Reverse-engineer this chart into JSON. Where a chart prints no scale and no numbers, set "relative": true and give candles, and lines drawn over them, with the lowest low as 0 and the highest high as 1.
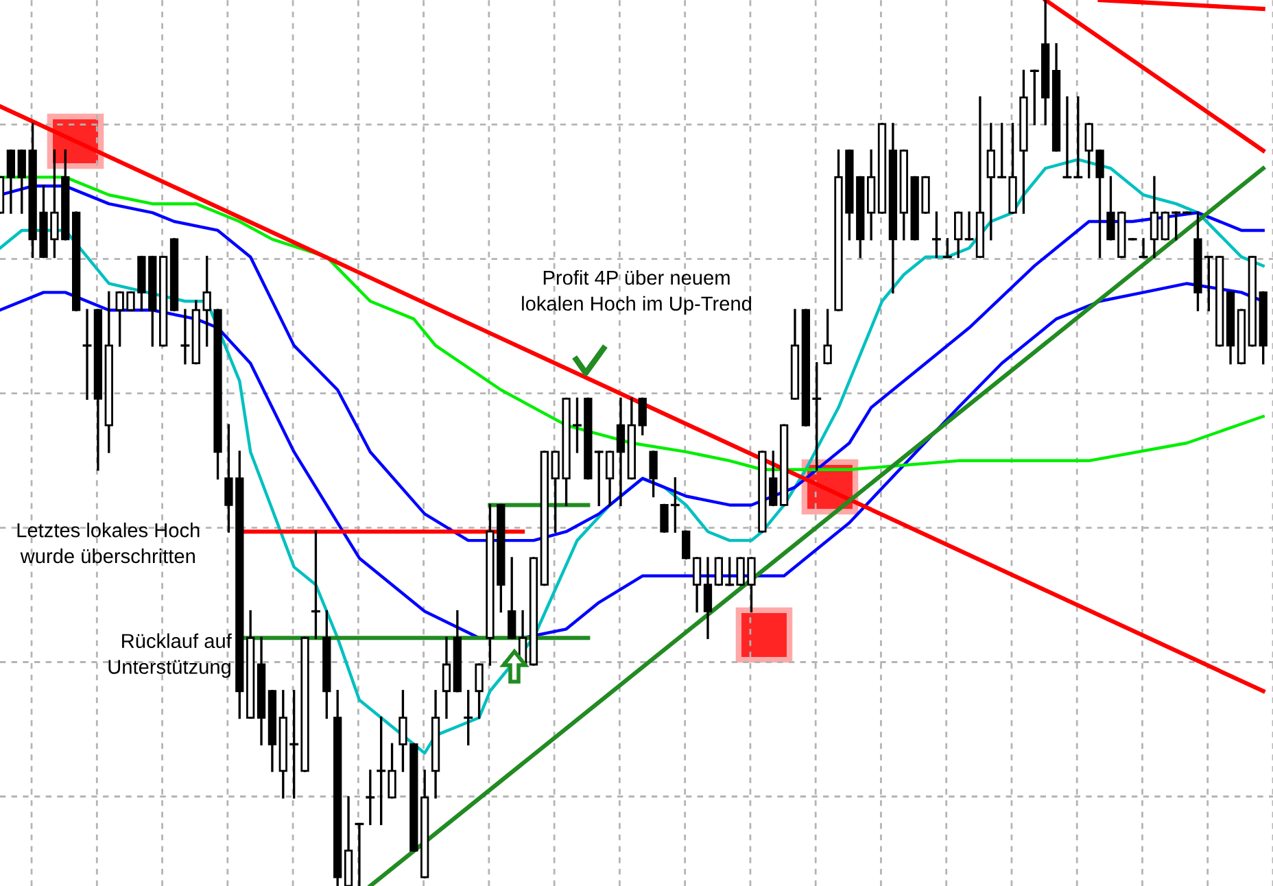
{
  "chart_data": {
    "type": "candlestick",
    "relative": true,
    "grid": true,
    "categories": [
      null,
      null,
      null,
      null,
      null,
      null,
      null,
      null,
      null,
      null,
      null,
      null,
      null,
      null,
      null,
      null,
      null,
      null,
      null,
      null,
      null,
      null,
      null,
      null,
      null,
      null,
      null,
      null,
      null,
      null,
      null,
      null,
      null,
      null,
      null,
      null,
      null,
      null,
      null,
      null,
      null,
      null,
      null,
      null,
      null,
      null,
      null,
      null,
      null,
      null,
      null,
      null,
      null,
      null,
      null,
      null,
      null,
      null,
      null,
      null,
      null,
      null,
      null,
      null,
      null,
      null,
      null,
      null,
      null,
      null,
      null,
      null,
      null,
      null,
      null,
      null,
      null,
      null,
      null,
      null,
      null,
      null,
      null,
      null,
      null,
      null,
      null,
      null,
      null,
      null,
      null,
      null,
      null,
      null,
      null,
      null,
      null,
      null,
      null,
      null,
      null,
      null,
      null,
      null,
      null,
      null,
      null,
      null,
      null,
      null,
      null,
      null,
      null,
      null,
      null,
      null,
      null
    ],
    "ohlc": [
      [
        0.76,
        0.8,
        0.76,
        0.8
      ],
      [
        0.83,
        0.83,
        0.76,
        0.8
      ],
      [
        0.83,
        0.83,
        0.76,
        0.8
      ],
      [
        0.83,
        0.86,
        0.71,
        0.73
      ],
      [
        0.76,
        0.79,
        0.71,
        0.71
      ],
      [
        0.73,
        0.83,
        0.71,
        0.76
      ],
      [
        0.8,
        0.83,
        0.73,
        0.73
      ],
      [
        0.76,
        0.76,
        0.65,
        0.65
      ],
      [
        0.61,
        0.65,
        0.55,
        0.61
      ],
      [
        0.65,
        0.65,
        0.47,
        0.55
      ],
      [
        0.52,
        0.67,
        0.49,
        0.61
      ],
      [
        0.65,
        0.67,
        0.61,
        0.67
      ],
      [
        0.65,
        0.67,
        0.65,
        0.67
      ],
      [
        0.71,
        0.71,
        0.65,
        0.67
      ],
      [
        0.71,
        0.71,
        0.61,
        0.65
      ],
      [
        0.61,
        0.71,
        0.61,
        0.71
      ],
      [
        0.73,
        0.73,
        0.65,
        0.65
      ],
      [
        0.61,
        0.65,
        0.59,
        0.61
      ],
      [
        0.59,
        0.66,
        0.59,
        0.65
      ],
      [
        0.65,
        0.71,
        0.61,
        0.67
      ],
      [
        0.65,
        0.65,
        0.46,
        0.49
      ],
      [
        0.46,
        0.52,
        0.4,
        0.43
      ],
      [
        0.46,
        0.49,
        0.19,
        0.22
      ],
      [
        0.19,
        0.31,
        0.19,
        0.28
      ],
      [
        0.25,
        0.28,
        0.16,
        0.19
      ],
      [
        0.22,
        0.22,
        0.13,
        0.16
      ],
      [
        0.13,
        0.22,
        0.1,
        0.19
      ],
      [
        0.16,
        0.22,
        0.1,
        0.16
      ],
      [
        0.13,
        0.28,
        0.13,
        0.28
      ],
      [
        0.31,
        0.4,
        0.28,
        0.31
      ],
      [
        0.28,
        0.31,
        0.19,
        0.22
      ],
      [
        0.19,
        0.22,
        0.0,
        0.01
      ],
      [
        0.0,
        0.1,
        0.0,
        0.04
      ],
      [
        0.07,
        0.07,
        0.0,
        0.07
      ],
      [
        0.1,
        0.13,
        0.07,
        0.1
      ],
      [
        0.13,
        0.19,
        0.07,
        0.13
      ],
      [
        0.1,
        0.16,
        0.1,
        0.13
      ],
      [
        0.16,
        0.22,
        0.13,
        0.19
      ],
      [
        0.16,
        0.16,
        0.04,
        0.04
      ],
      [
        0.01,
        0.13,
        0.01,
        0.1
      ],
      [
        0.13,
        0.22,
        0.1,
        0.19
      ],
      [
        0.22,
        0.28,
        0.19,
        0.25
      ],
      [
        0.28,
        0.31,
        0.22,
        0.22
      ],
      [
        0.19,
        0.22,
        0.16,
        0.19
      ],
      [
        0.22,
        0.25,
        0.19,
        0.25
      ],
      [
        0.28,
        0.43,
        0.25,
        0.4
      ],
      [
        0.43,
        0.43,
        0.31,
        0.34
      ],
      [
        0.31,
        0.37,
        0.28,
        0.28
      ],
      [
        0.25,
        0.31,
        0.25,
        0.28
      ],
      [
        0.25,
        0.37,
        0.25,
        0.37
      ],
      [
        0.34,
        0.49,
        0.34,
        0.49
      ],
      [
        0.46,
        0.49,
        0.4,
        0.49
      ],
      [
        0.46,
        0.55,
        0.43,
        0.55
      ],
      [
        0.52,
        0.55,
        0.49,
        0.52
      ],
      [
        0.55,
        0.55,
        0.46,
        0.46
      ],
      [
        0.49,
        0.49,
        0.43,
        0.49
      ],
      [
        0.46,
        0.49,
        0.43,
        0.49
      ],
      [
        0.52,
        0.55,
        0.43,
        0.49
      ],
      [
        0.46,
        0.55,
        0.46,
        0.52
      ],
      [
        0.55,
        0.55,
        0.51,
        0.52
      ],
      [
        0.49,
        0.49,
        0.44,
        0.46
      ],
      [
        0.43,
        0.43,
        0.4,
        0.4
      ],
      [
        0.43,
        0.46,
        0.4,
        0.43
      ],
      [
        0.4,
        0.4,
        0.37,
        0.37
      ],
      [
        0.34,
        0.37,
        0.31,
        0.37
      ],
      [
        0.34,
        0.37,
        0.28,
        0.31
      ],
      [
        0.34,
        0.37,
        0.34,
        0.37
      ],
      [
        0.34,
        0.37,
        0.34,
        0.34
      ],
      [
        0.34,
        0.37,
        0.34,
        0.37
      ],
      [
        0.34,
        0.37,
        0.31,
        0.37
      ],
      [
        0.4,
        0.49,
        0.4,
        0.49
      ],
      [
        0.46,
        0.49,
        0.43,
        0.43
      ],
      [
        0.43,
        0.52,
        0.43,
        0.52
      ],
      [
        0.55,
        0.65,
        0.55,
        0.61
      ],
      [
        0.65,
        0.65,
        0.52,
        0.52
      ],
      [
        0.55,
        0.59,
        0.47,
        0.55
      ],
      [
        0.59,
        0.65,
        0.59,
        0.61
      ],
      [
        0.65,
        0.83,
        0.65,
        0.8
      ],
      [
        0.83,
        0.83,
        0.73,
        0.76
      ],
      [
        0.8,
        0.8,
        0.71,
        0.73
      ],
      [
        0.76,
        0.83,
        0.73,
        0.8
      ],
      [
        0.76,
        0.86,
        0.76,
        0.86
      ],
      [
        0.83,
        0.86,
        0.67,
        0.73
      ],
      [
        0.76,
        0.83,
        0.73,
        0.83
      ],
      [
        0.8,
        0.8,
        0.73,
        0.73
      ],
      [
        0.76,
        0.8,
        0.76,
        0.8
      ],
      [
        0.73,
        0.76,
        0.71,
        0.73
      ],
      [
        0.71,
        0.73,
        0.71,
        0.71
      ],
      [
        0.73,
        0.76,
        0.71,
        0.76
      ],
      [
        0.73,
        0.76,
        0.73,
        0.73
      ],
      [
        0.71,
        0.89,
        0.71,
        0.76
      ],
      [
        0.8,
        0.86,
        0.73,
        0.83
      ],
      [
        0.8,
        0.86,
        0.8,
        0.8
      ],
      [
        0.76,
        0.86,
        0.76,
        0.8
      ],
      [
        0.83,
        0.92,
        0.76,
        0.89
      ],
      [
        0.92,
        0.92,
        0.86,
        0.92
      ],
      [
        0.95,
        1.0,
        0.86,
        0.89
      ],
      [
        0.92,
        0.95,
        0.83,
        0.83
      ],
      [
        0.8,
        0.89,
        0.8,
        0.8
      ],
      [
        0.8,
        0.89,
        0.8,
        0.8
      ],
      [
        0.83,
        0.86,
        0.8,
        0.86
      ],
      [
        0.83,
        0.83,
        0.71,
        0.8
      ],
      [
        0.76,
        0.8,
        0.73,
        0.73
      ],
      [
        0.71,
        0.76,
        0.71,
        0.76
      ],
      [
        0.73,
        0.73,
        0.73,
        0.73
      ],
      [
        0.71,
        0.73,
        0.71,
        0.71
      ],
      [
        0.73,
        0.8,
        0.71,
        0.76
      ],
      [
        0.73,
        0.76,
        0.73,
        0.76
      ],
      [
        0.76,
        0.76,
        0.73,
        0.76
      ],
      [
        0.76,
        0.76,
        0.76,
        0.76
      ],
      [
        0.73,
        0.76,
        0.65,
        0.67
      ],
      [
        0.71,
        0.71,
        0.65,
        0.71
      ],
      [
        0.61,
        0.71,
        0.61,
        0.71
      ],
      [
        0.67,
        0.67,
        0.59,
        0.61
      ],
      [
        0.59,
        0.65,
        0.59,
        0.65
      ],
      [
        0.61,
        0.71,
        0.61,
        0.71
      ],
      [
        0.67,
        0.67,
        0.59,
        0.61
      ]
    ],
    "series": [
      {
        "type": "line",
        "color": "#00c0c0",
        "values": [
          0.72,
          null,
          0.74,
          null,
          null,
          null,
          0.74,
          null,
          null,
          null,
          0.68,
          null,
          null,
          null,
          null,
          null,
          null,
          0.66,
          null,
          0.66,
          null,
          null,
          0.57,
          0.49,
          null,
          null,
          null,
          0.36,
          null,
          0.34,
          null,
          0.28,
          null,
          0.21,
          null,
          null,
          0.18,
          null,
          null,
          0.15,
          0.17,
          null,
          0.18,
          null,
          0.19,
          0.22,
          null,
          0.25,
          null,
          0.28,
          null,
          null,
          null,
          0.39,
          null,
          null,
          0.43,
          null,
          null,
          0.46,
          null,
          0.45,
          null,
          0.43,
          null,
          0.4,
          null,
          0.39,
          null,
          0.39,
          0.4,
          null,
          0.43,
          null,
          0.47,
          null,
          null,
          0.54,
          null,
          null,
          null,
          0.66,
          null,
          0.69,
          null,
          0.71,
          null,
          0.71,
          null,
          0.72,
          null,
          0.75,
          null,
          0.76,
          0.78,
          null,
          0.81,
          null,
          null,
          0.82,
          null,
          null,
          0.81,
          null,
          null,
          0.78,
          null,
          null,
          0.77,
          null,
          0.76,
          null,
          null,
          null,
          0.71,
          null,
          0.7
        ]
      },
      {
        "type": "line",
        "color": "#0000ff",
        "values": [
          0.78,
          null,
          null,
          0.79,
          null,
          null,
          0.79,
          null,
          null,
          null,
          0.77,
          null,
          null,
          null,
          0.76,
          null,
          0.75,
          null,
          null,
          null,
          0.74,
          null,
          null,
          0.71,
          null,
          null,
          null,
          0.61,
          null,
          null,
          null,
          0.56,
          null,
          null,
          0.49,
          null,
          null,
          null,
          null,
          0.42,
          null,
          null,
          null,
          0.39,
          null,
          null,
          null,
          null,
          null,
          0.39,
          null,
          null,
          0.4,
          null,
          null,
          0.42,
          null,
          null,
          null,
          0.46,
          null,
          null,
          null,
          0.44,
          null,
          null,
          null,
          0.43,
          null,
          0.43,
          null,
          null,
          null,
          0.45,
          null,
          null,
          null,
          null,
          0.5,
          null,
          0.54,
          null,
          null,
          null,
          null,
          0.59,
          null,
          null,
          null,
          0.63,
          null,
          null,
          null,
          null,
          null,
          0.7,
          null,
          0.72,
          null,
          null,
          0.75,
          null,
          null,
          null,
          0.75,
          null,
          null,
          null,
          null,
          null,
          0.76,
          null,
          null,
          null,
          0.74,
          null,
          0.74
        ]
      },
      {
        "type": "line",
        "color": "#0000ff",
        "values": [
          0.65,
          null,
          null,
          null,
          0.67,
          null,
          0.67,
          null,
          null,
          null,
          0.65,
          null,
          null,
          null,
          0.65,
          null,
          null,
          null,
          0.64,
          null,
          0.63,
          null,
          null,
          0.59,
          null,
          null,
          null,
          0.49,
          null,
          null,
          null,
          null,
          null,
          0.37,
          null,
          null,
          null,
          null,
          null,
          0.31,
          null,
          null,
          null,
          null,
          0.28,
          null,
          null,
          null,
          0.28,
          null,
          null,
          null,
          0.29,
          null,
          null,
          0.32,
          null,
          null,
          null,
          0.35,
          null,
          null,
          null,
          0.35,
          null,
          null,
          null,
          0.35,
          null,
          0.35,
          null,
          null,
          0.35,
          null,
          null,
          0.38,
          null,
          null,
          0.41,
          null,
          null,
          null,
          null,
          null,
          null,
          null,
          null,
          null,
          0.54,
          null,
          null,
          null,
          0.59,
          null,
          null,
          null,
          null,
          0.64,
          null,
          null,
          null,
          0.66,
          null,
          null,
          null,
          0.67,
          null,
          null,
          null,
          0.68,
          null,
          null,
          null,
          null,
          0.67,
          null,
          0.66
        ]
      },
      {
        "type": "line",
        "color": "#00ee00",
        "values": [
          0.8,
          null,
          null,
          null,
          null,
          null,
          0.8,
          null,
          null,
          null,
          0.78,
          null,
          null,
          null,
          0.77,
          null,
          null,
          null,
          0.77,
          null,
          null,
          null,
          0.75,
          null,
          null,
          0.73,
          null,
          null,
          null,
          null,
          0.71,
          null,
          null,
          null,
          0.66,
          null,
          null,
          null,
          0.64,
          null,
          0.61,
          null,
          null,
          null,
          null,
          null,
          0.56,
          null,
          null,
          null,
          null,
          null,
          0.52,
          null,
          null,
          0.51,
          null,
          null,
          0.5,
          null,
          null,
          null,
          null,
          0.49,
          null,
          null,
          null,
          0.48,
          null,
          null,
          0.47,
          null,
          null,
          0.47,
          null,
          null,
          null,
          null,
          0.47,
          null,
          null,
          null,
          null,
          null,
          null,
          null,
          null,
          null,
          0.48,
          null,
          null,
          null,
          null,
          null,
          null,
          null,
          null,
          null,
          null,
          null,
          0.48,
          null,
          null,
          null,
          null,
          null,
          null,
          null,
          null,
          0.5,
          null,
          null,
          null,
          null,
          null,
          null,
          0.53
        ]
      },
      {
        "type": "line",
        "color": "#ff0000",
        "values": [
          0.88,
          null,
          null,
          null,
          null,
          null,
          null,
          null,
          null,
          null,
          null,
          null,
          null,
          null,
          null,
          null,
          null,
          null,
          null,
          null,
          null,
          null,
          null,
          null,
          null,
          null,
          null,
          null,
          null,
          null,
          null,
          null,
          null,
          null,
          null,
          null,
          null,
          null,
          null,
          null,
          null,
          null,
          null,
          null,
          null,
          null,
          null,
          null,
          null,
          null,
          null,
          null,
          null,
          null,
          null,
          null,
          null,
          null,
          null,
          null,
          null,
          null,
          null,
          null,
          null,
          null,
          null,
          null,
          null,
          null,
          null,
          null,
          null,
          null,
          null,
          null,
          null,
          null,
          null,
          null,
          null,
          null,
          null,
          null,
          null,
          null,
          null,
          null,
          null,
          null,
          null,
          null,
          null,
          null,
          null,
          null,
          null,
          null,
          null,
          null,
          null,
          null,
          null,
          null,
          null,
          null,
          null,
          null,
          null,
          null,
          null,
          null,
          null,
          null,
          null,
          null,
          0.22
        ]
      },
      {
        "type": "line",
        "color": "#ff0000",
        "values": [
          null,
          null,
          null,
          null,
          null,
          null,
          null,
          null,
          null,
          null,
          null,
          null,
          null,
          null,
          null,
          null,
          null,
          null,
          null,
          null,
          null,
          null,
          null,
          null,
          null,
          null,
          null,
          null,
          null,
          null,
          null,
          null,
          null,
          null,
          null,
          null,
          null,
          null,
          null,
          null,
          null,
          null,
          null,
          null,
          null,
          null,
          null,
          null,
          null,
          null,
          null,
          null,
          null,
          null,
          null,
          null,
          null,
          null,
          null,
          null,
          null,
          null,
          null,
          null,
          null,
          null,
          null,
          null,
          null,
          null,
          null,
          null,
          null,
          null,
          null,
          null,
          null,
          null,
          null,
          null,
          null,
          null,
          null,
          null,
          null,
          null,
          null,
          null,
          null,
          null,
          null,
          null,
          null,
          null,
          null,
          null,
          1.0,
          null,
          null,
          null,
          null,
          null,
          null,
          null,
          null,
          null,
          null,
          null,
          null,
          null,
          null,
          null,
          null,
          null,
          null,
          null,
          0.83
        ]
      },
      {
        "type": "line",
        "color": "#ff0000",
        "values": [
          null,
          null,
          null,
          null,
          null,
          null,
          null,
          null,
          null,
          null,
          null,
          null,
          null,
          null,
          null,
          null,
          null,
          null,
          null,
          null,
          null,
          null,
          null,
          null,
          null,
          null,
          null,
          null,
          null,
          null,
          null,
          null,
          null,
          null,
          null,
          null,
          null,
          null,
          null,
          null,
          null,
          null,
          null,
          null,
          null,
          null,
          null,
          null,
          null,
          null,
          null,
          null,
          null,
          null,
          null,
          null,
          null,
          null,
          null,
          null,
          null,
          null,
          null,
          null,
          null,
          null,
          null,
          null,
          null,
          null,
          null,
          null,
          null,
          null,
          null,
          null,
          null,
          null,
          null,
          null,
          null,
          null,
          null,
          null,
          null,
          null,
          null,
          null,
          null,
          null,
          null,
          null,
          null,
          null,
          null,
          null,
          null,
          null,
          null,
          null,
          null,
          1.0,
          null,
          null,
          null,
          null,
          null,
          null,
          null,
          null,
          null,
          null,
          null,
          null,
          null,
          null,
          0.99
        ]
      },
      {
        "type": "line",
        "color": "#228b22",
        "values": [
          null,
          null,
          null,
          null,
          null,
          null,
          null,
          null,
          null,
          null,
          null,
          null,
          null,
          null,
          null,
          null,
          null,
          null,
          null,
          null,
          null,
          null,
          null,
          null,
          null,
          null,
          null,
          null,
          null,
          null,
          null,
          null,
          null,
          null,
          0.0,
          null,
          null,
          null,
          null,
          null,
          null,
          null,
          null,
          null,
          null,
          null,
          null,
          null,
          null,
          null,
          null,
          null,
          null,
          null,
          null,
          null,
          null,
          null,
          null,
          null,
          null,
          null,
          null,
          null,
          null,
          null,
          null,
          null,
          null,
          null,
          null,
          null,
          null,
          null,
          null,
          null,
          null,
          null,
          null,
          null,
          null,
          null,
          null,
          null,
          null,
          null,
          null,
          null,
          null,
          null,
          null,
          null,
          null,
          null,
          null,
          null,
          null,
          null,
          null,
          null,
          null,
          null,
          null,
          null,
          null,
          null,
          null,
          null,
          null,
          null,
          null,
          null,
          null,
          null,
          null,
          null,
          0.81
        ]
      },
      {
        "type": "line",
        "color": "#ff0000",
        "values": [
          null,
          null,
          null,
          null,
          null,
          null,
          null,
          null,
          null,
          null,
          null,
          null,
          null,
          null,
          null,
          null,
          null,
          null,
          null,
          null,
          null,
          null,
          0.4,
          null,
          null,
          null,
          null,
          null,
          null,
          null,
          null,
          null,
          null,
          null,
          null,
          null,
          null,
          null,
          null,
          null,
          null,
          null,
          null,
          null,
          null,
          null,
          null,
          null,
          0.4,
          null,
          null,
          null,
          null,
          null,
          null,
          null,
          null,
          null,
          null,
          null,
          null,
          null,
          null,
          null,
          null,
          null,
          null,
          null,
          null,
          null,
          null,
          null,
          null,
          null,
          null,
          null,
          null,
          null,
          null,
          null,
          null,
          null,
          null,
          null,
          null,
          null,
          null,
          null,
          null,
          null,
          null,
          null,
          null,
          null,
          null,
          null,
          null,
          null,
          null,
          null,
          null,
          null,
          null,
          null,
          null,
          null,
          null,
          null,
          null,
          null,
          null,
          null,
          null,
          null,
          null,
          null,
          null
        ]
      },
      {
        "type": "line",
        "color": "#228b22",
        "values": [
          null,
          null,
          null,
          null,
          null,
          null,
          null,
          null,
          null,
          null,
          null,
          null,
          null,
          null,
          null,
          null,
          null,
          null,
          null,
          null,
          null,
          null,
          0.28,
          null,
          null,
          null,
          null,
          null,
          null,
          null,
          null,
          null,
          null,
          null,
          null,
          null,
          null,
          null,
          null,
          null,
          null,
          null,
          null,
          null,
          null,
          null,
          null,
          null,
          null,
          null,
          null,
          null,
          null,
          null,
          0.28,
          null,
          null,
          null,
          null,
          null,
          null,
          null,
          null,
          null,
          null,
          null,
          null,
          null,
          null,
          null,
          null,
          null,
          null,
          null,
          null,
          null,
          null,
          null,
          null,
          null,
          null,
          null,
          null,
          null,
          null,
          null,
          null,
          null,
          null,
          null,
          null,
          null,
          null,
          null,
          null,
          null,
          null,
          null,
          null,
          null,
          null,
          null,
          null,
          null,
          null,
          null,
          null,
          null,
          null,
          null,
          null,
          null,
          null,
          null,
          null,
          null,
          null
        ]
      },
      {
        "type": "line",
        "color": "#228b22",
        "values": [
          null,
          null,
          null,
          null,
          null,
          null,
          null,
          null,
          null,
          null,
          null,
          null,
          null,
          null,
          null,
          null,
          null,
          null,
          null,
          null,
          null,
          null,
          null,
          null,
          null,
          null,
          null,
          null,
          null,
          null,
          null,
          null,
          null,
          null,
          null,
          null,
          null,
          null,
          null,
          null,
          null,
          null,
          null,
          null,
          null,
          0.43,
          null,
          null,
          null,
          null,
          null,
          null,
          null,
          null,
          0.43,
          null,
          null,
          null,
          null,
          null,
          null,
          null,
          null,
          null,
          null,
          null,
          null,
          null,
          null,
          null,
          null,
          null,
          null,
          null,
          null,
          null,
          null,
          null,
          null,
          null,
          null,
          null,
          null,
          null,
          null,
          null,
          null,
          null,
          null,
          null,
          null,
          null,
          null,
          null,
          null,
          null,
          null,
          null,
          null,
          null,
          null,
          null,
          null,
          null,
          null,
          null,
          null,
          null,
          null,
          null,
          null,
          null,
          null,
          null,
          null,
          null,
          null
        ]
      }
    ],
    "annotations": [
      "Profit 4P über neuem\nlokalen Hoch im Up-Trend",
      "Letztes lokales Hoch\nwurde überschritten",
      "Rücklauf auf\nUnterstützung"
    ]
  }
}
